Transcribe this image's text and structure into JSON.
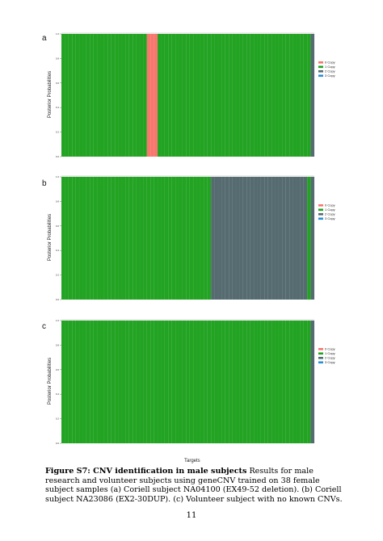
{
  "chart_data": [
    {
      "type": "bar",
      "panel_label": "a",
      "ylabel": "Posterior Probabilities",
      "yticks": [
        "0.0",
        "0.2",
        "0.4",
        "0.6",
        "0.8",
        "1.0"
      ],
      "ylim": [
        0,
        1
      ],
      "legend": [
        "0 Copy",
        "1 Copy",
        "2 Copy",
        "3 Copy"
      ],
      "legend_position": "right",
      "n_targets": 71,
      "target_states": {
        "default": "1 Copy",
        "0 Copy_indices": [
          24,
          25,
          26
        ],
        "2 Copy_indices": [
          70
        ]
      }
    },
    {
      "type": "bar",
      "panel_label": "b",
      "ylabel": "Posterior Probabilities",
      "yticks": [
        "0.0",
        "0.2",
        "0.4",
        "0.6",
        "0.8",
        "1.0"
      ],
      "ylim": [
        0,
        1
      ],
      "legend": [
        "0 Copy",
        "1 Copy",
        "2 Copy",
        "3 Copy"
      ],
      "legend_position": "right",
      "n_targets": 71,
      "target_states": {
        "default": "1 Copy",
        "2 Copy_range": [
          42,
          68
        ],
        "2 Copy_indices": [
          70
        ]
      }
    },
    {
      "type": "bar",
      "panel_label": "c",
      "ylabel": "Posterior Probabilities",
      "xlabel": "Targets",
      "yticks": [
        "0.0",
        "0.2",
        "0.4",
        "0.6",
        "0.8",
        "1.0"
      ],
      "ylim": [
        0,
        1
      ],
      "legend": [
        "0 Copy",
        "1 Copy",
        "2 Copy",
        "3 Copy"
      ],
      "legend_position": "right",
      "n_targets": 71,
      "target_states": {
        "default": "1 Copy",
        "2 Copy_indices": [
          70
        ]
      }
    }
  ],
  "colors": {
    "0 Copy": "#f8766d",
    "1 Copy": "#22a322",
    "2 Copy": "#556b70",
    "3 Copy": "#2a8fd6",
    "panel_bg": "#ebebeb"
  },
  "caption": {
    "bold": "Figure S7: CNV identification in male subjects",
    "text": " Results for male research and volunteer subjects using geneCNV trained on 38 female subject samples (a) Coriell subject NA04100 (EX49-52 deletion). (b) Coriell subject NA23086 (EX2-30DUP). (c) Volunteer subject with no known CNVs."
  },
  "page_number": "11"
}
